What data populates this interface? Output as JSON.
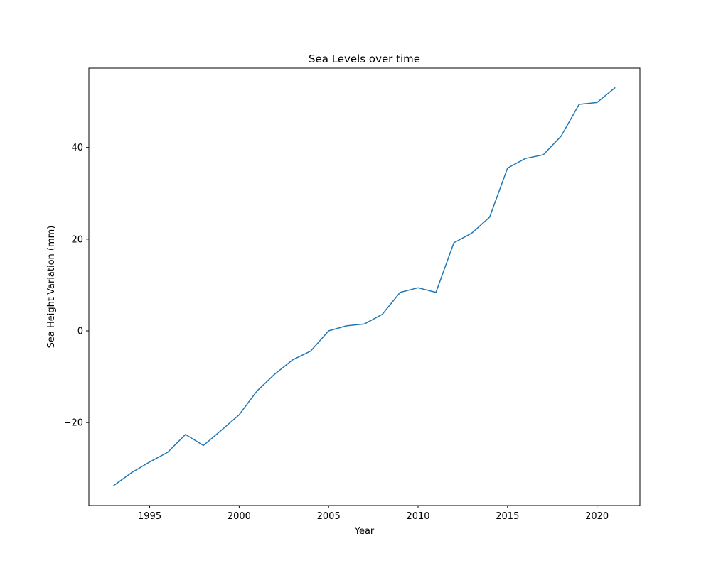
{
  "chart_data": {
    "type": "line",
    "title": "Sea Levels over time",
    "xlabel": "Year",
    "ylabel": "Sea Height Variation (mm)",
    "x": [
      1993,
      1994,
      1995,
      1996,
      1997,
      1998,
      1999,
      2000,
      2001,
      2002,
      2003,
      2004,
      2005,
      2006,
      2007,
      2008,
      2009,
      2010,
      2011,
      2012,
      2013,
      2014,
      2015,
      2016,
      2017,
      2018,
      2019,
      2020,
      2021
    ],
    "series": [
      {
        "values": [
          -33.7,
          -30.9,
          -28.6,
          -26.5,
          -22.6,
          -25.0,
          -21.7,
          -18.3,
          -13.1,
          -9.4,
          -6.3,
          -4.4,
          0.0,
          1.1,
          1.5,
          3.6,
          8.4,
          9.4,
          8.4,
          19.2,
          21.3,
          24.8,
          35.5,
          37.6,
          38.4,
          42.5,
          49.4,
          49.8,
          53.0
        ],
        "color": "#1f77b4"
      }
    ],
    "xlim": [
      1991.6,
      2022.4
    ],
    "ylim": [
      -38.1,
      57.3
    ],
    "xticks": [
      1995,
      2000,
      2005,
      2010,
      2015,
      2020
    ],
    "xtick_labels": [
      "1995",
      "2000",
      "2005",
      "2010",
      "2015",
      "2020"
    ],
    "yticks": [
      -20,
      0,
      20,
      40
    ],
    "ytick_labels": [
      "−20",
      "0",
      "20",
      "40"
    ],
    "grid": false,
    "legend": "none"
  }
}
